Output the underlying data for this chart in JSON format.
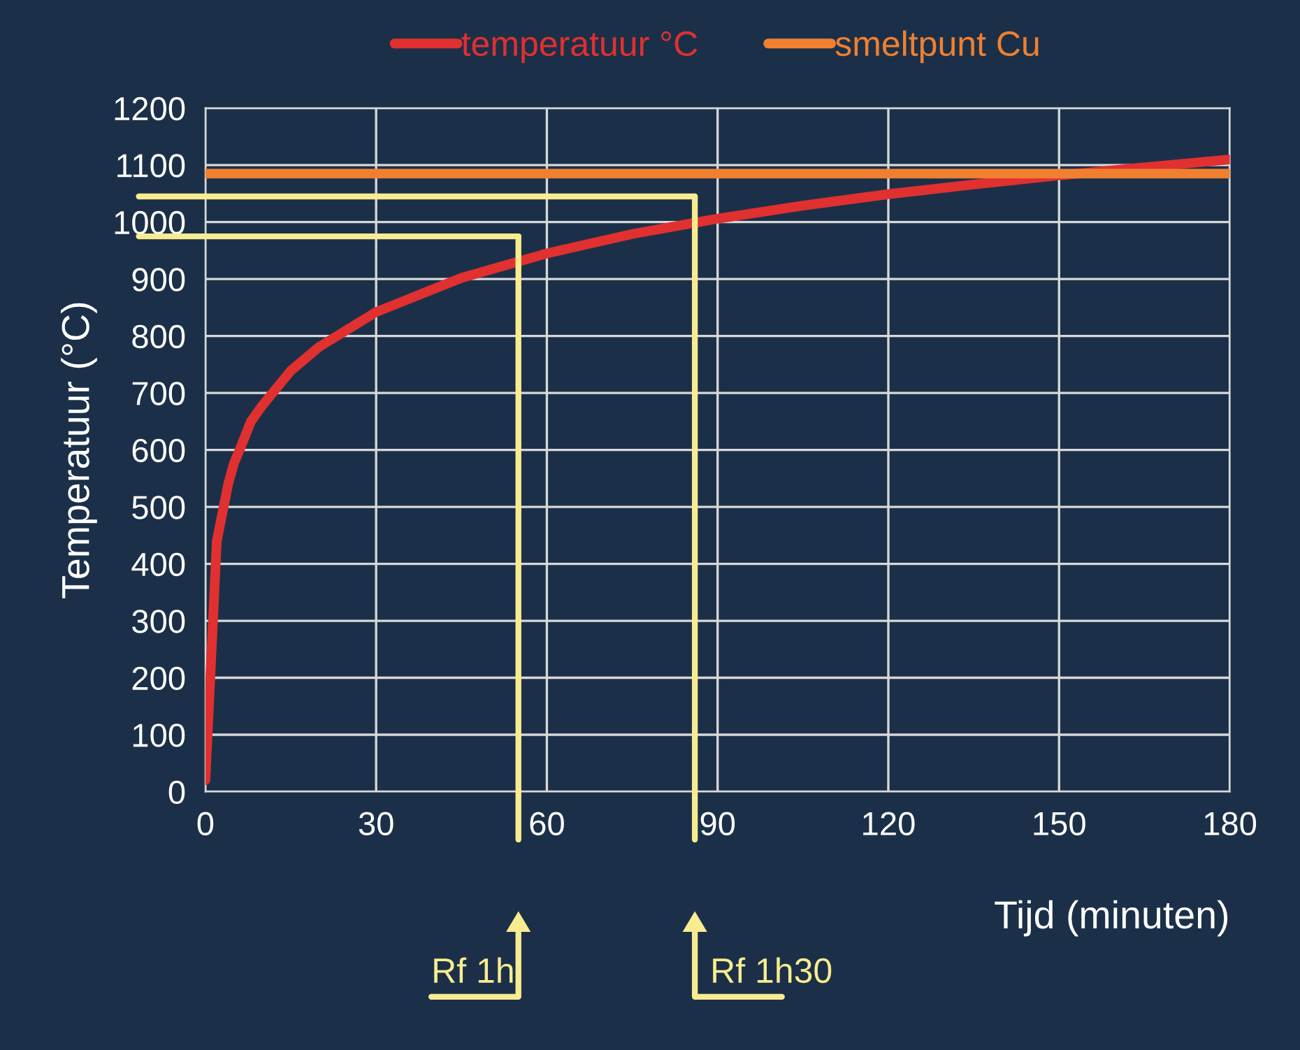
{
  "chart_data": {
    "type": "line",
    "xlabel": "Tijd (minuten)",
    "ylabel": "Temperatuur (°C)",
    "series": [
      {
        "name": "temperatuur °C",
        "color": "#e03030",
        "x": [
          0,
          2,
          4,
          5,
          6,
          8,
          10,
          15,
          20,
          30,
          45,
          60,
          75,
          90,
          105,
          120,
          135,
          150,
          165,
          180
        ],
        "values": [
          20,
          440,
          540,
          576,
          600,
          650,
          678,
          739,
          781,
          842,
          902,
          945,
          979,
          1006,
          1029,
          1049,
          1066,
          1082,
          1096,
          1110
        ]
      },
      {
        "name": "smeltpunt Cu",
        "color": "#f08030",
        "x": [
          0,
          180
        ],
        "values": [
          1085,
          1085
        ]
      }
    ],
    "xlim": [
      0,
      180
    ],
    "xticks": [
      0,
      30,
      60,
      90,
      120,
      150,
      180
    ],
    "ylim": [
      0,
      1200
    ],
    "yticks": [
      0,
      100,
      200,
      300,
      400,
      500,
      600,
      700,
      800,
      900,
      1000,
      1100,
      1200
    ],
    "grid": true,
    "legend": "top",
    "line_style": "solid",
    "marker": "none",
    "ref_lines": [
      {
        "axis": "y",
        "value": 975,
        "color": "#f8ec90"
      },
      {
        "axis": "x",
        "value": 55,
        "color": "#f8ec90"
      },
      {
        "axis": "y",
        "value": 1045,
        "color": "#f8ec90"
      },
      {
        "axis": "x",
        "value": 86,
        "color": "#f8ec90"
      }
    ],
    "annotations": [
      "Rf 1h",
      "Rf 1h30"
    ]
  }
}
